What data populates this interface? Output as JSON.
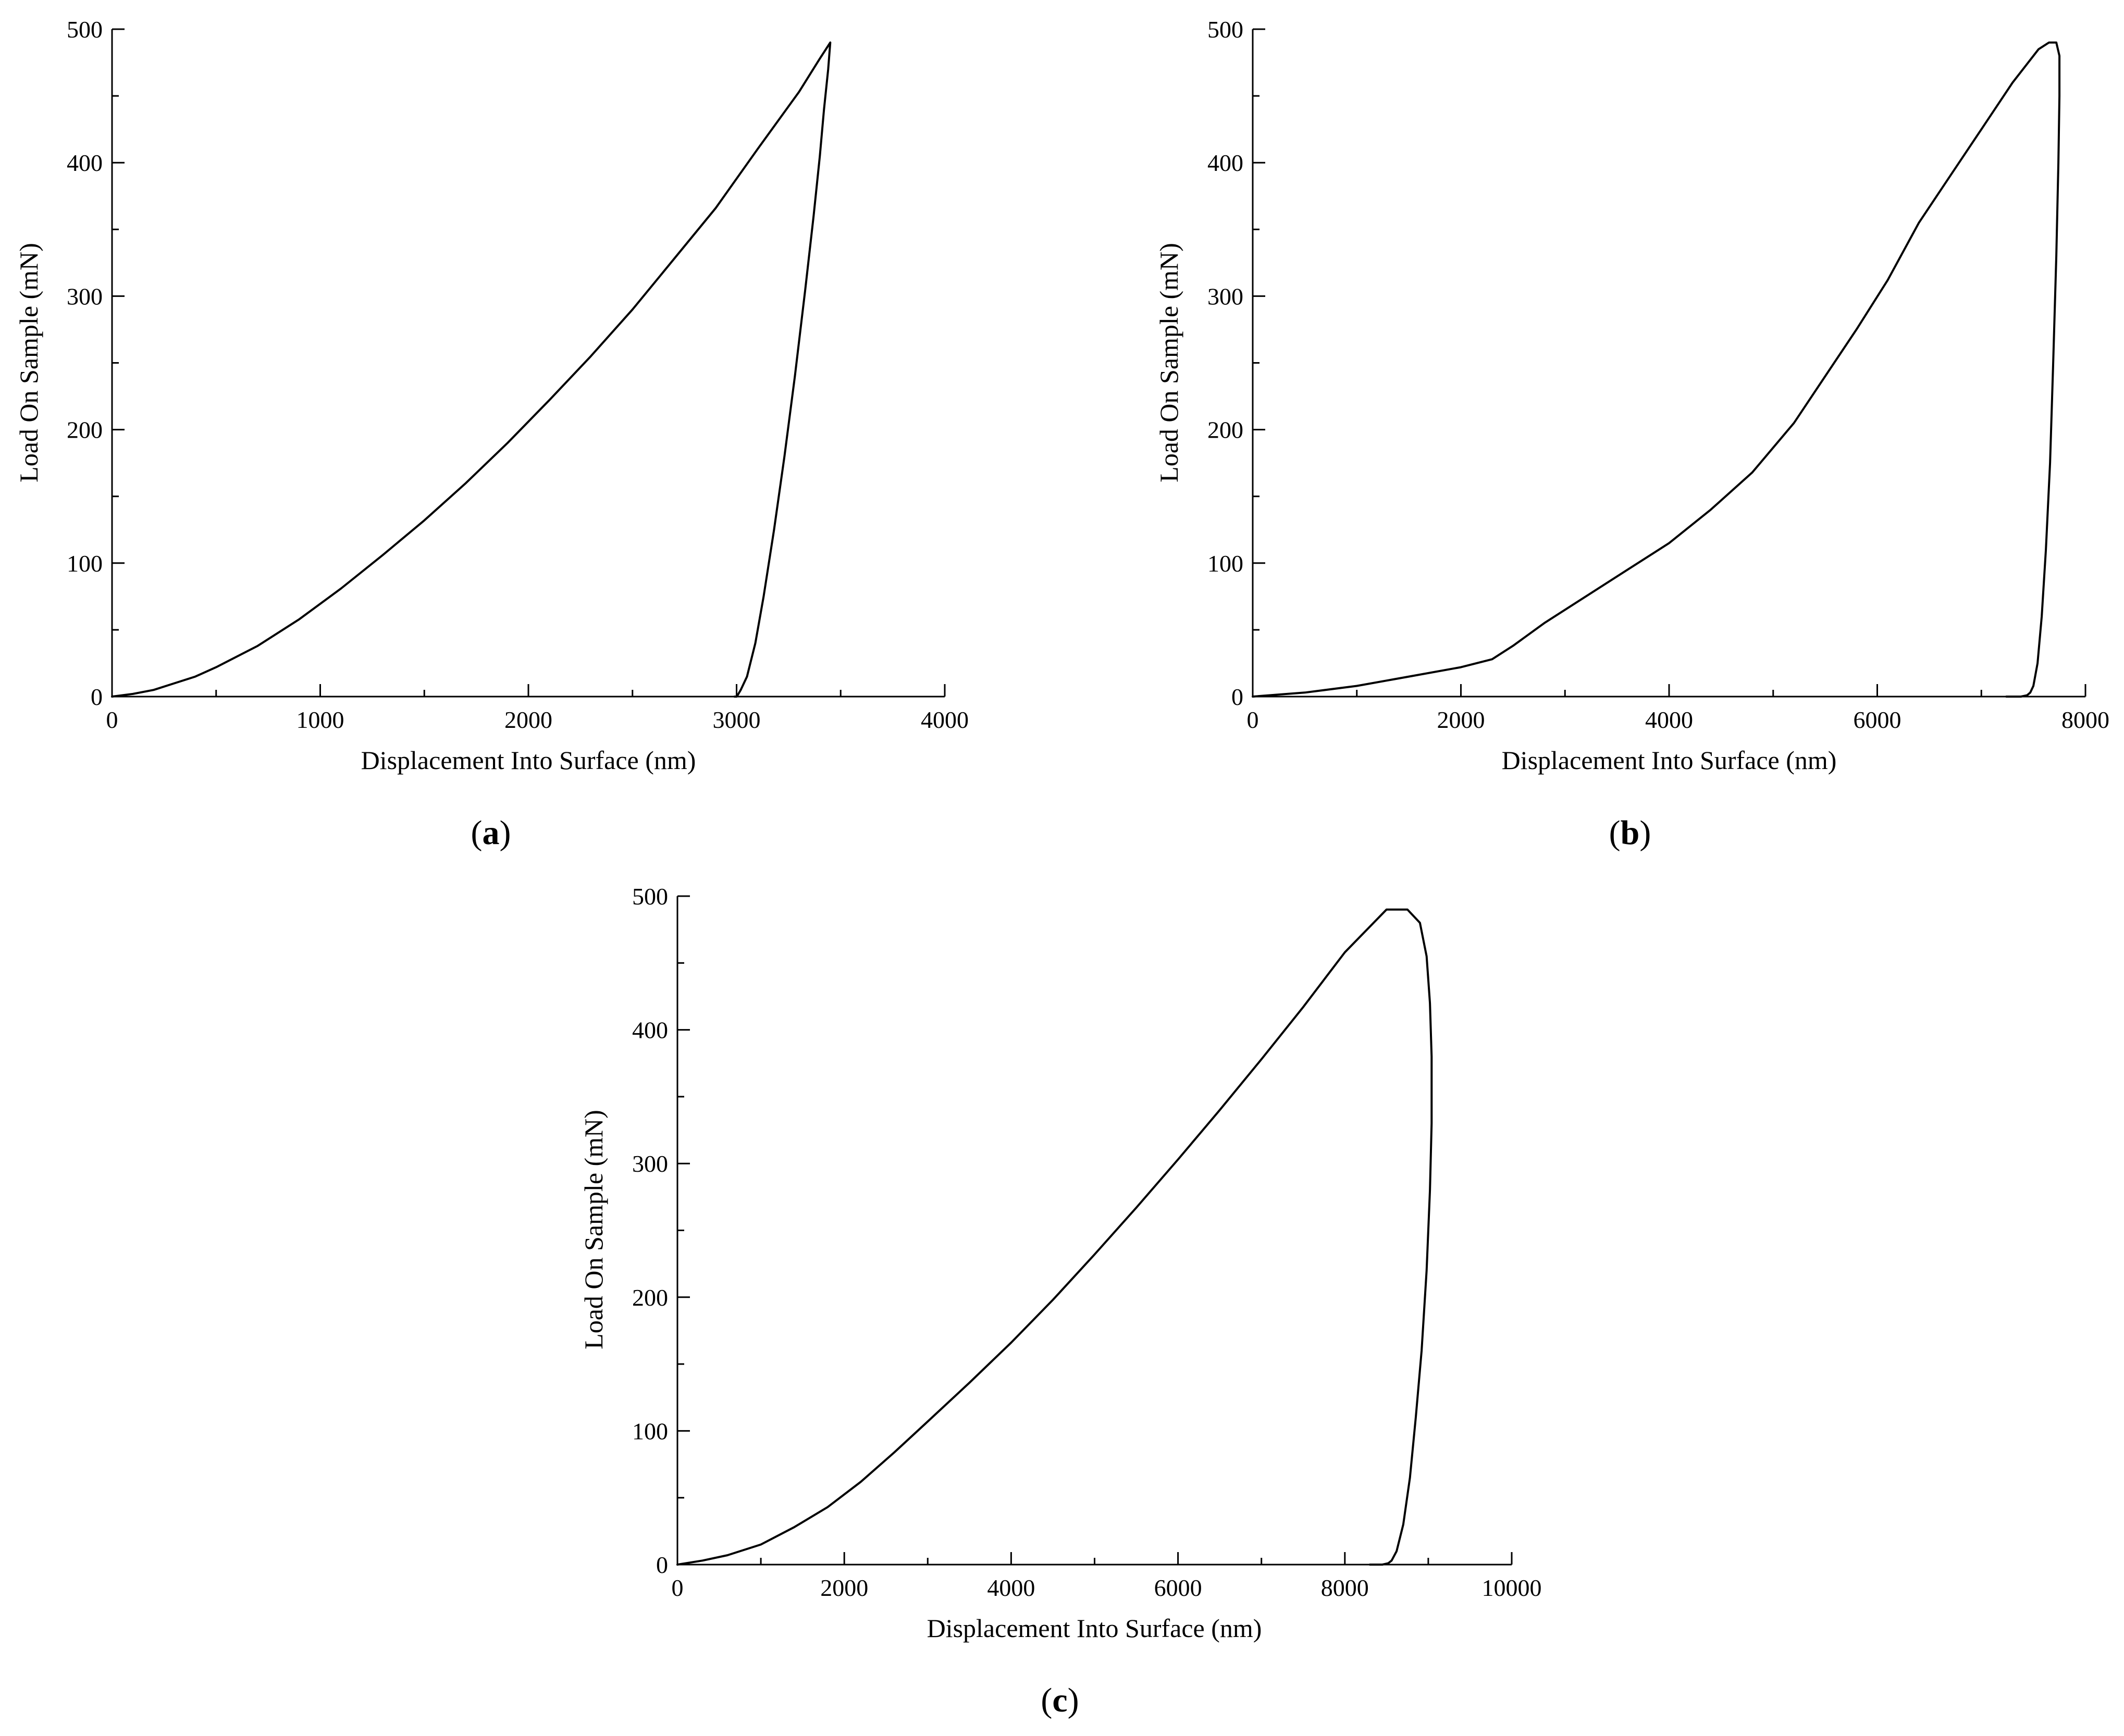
{
  "colors": {
    "background": "#ffffff",
    "line": "#000000"
  },
  "chart_data": [
    {
      "type": "line",
      "panel_label": "(a)",
      "panel_letter": "a",
      "xlabel": "Displacement Into Surface (nm)",
      "ylabel": "Load On Sample (mN)",
      "xlim": [
        0,
        4000
      ],
      "ylim": [
        0,
        500
      ],
      "xticks": [
        0,
        1000,
        2000,
        3000,
        4000
      ],
      "yticks": [
        0,
        100,
        200,
        300,
        400,
        500
      ],
      "x_minor_step": 500,
      "y_minor_step": 50,
      "grid": false,
      "series": [
        {
          "x": [
            0,
            100,
            200,
            300,
            400,
            500,
            700,
            900,
            1100,
            1300,
            1500,
            1700,
            1900,
            2100,
            2300,
            2500,
            2700,
            2900,
            3100,
            3300,
            3400,
            3450,
            3450,
            3440,
            3420,
            3400,
            3370,
            3330,
            3280,
            3230,
            3180,
            3130,
            3090,
            3050,
            3020,
            3005,
            3000,
            2990
          ],
          "y": [
            0,
            2,
            5,
            10,
            15,
            22,
            38,
            58,
            81,
            106,
            132,
            160,
            190,
            222,
            255,
            290,
            328,
            366,
            410,
            453,
            478,
            490,
            490,
            470,
            440,
            405,
            360,
            305,
            240,
            180,
            125,
            75,
            40,
            15,
            5,
            1,
            0,
            0
          ]
        }
      ]
    },
    {
      "type": "line",
      "panel_label": "(b)",
      "panel_letter": "b",
      "xlabel": "Displacement Into Surface (nm)",
      "ylabel": "Load On Sample (mN)",
      "xlim": [
        0,
        8000
      ],
      "ylim": [
        0,
        500
      ],
      "xticks": [
        0,
        2000,
        4000,
        6000,
        8000
      ],
      "yticks": [
        0,
        100,
        200,
        300,
        400,
        500
      ],
      "x_minor_step": 1000,
      "y_minor_step": 50,
      "grid": false,
      "series": [
        {
          "x": [
            0,
            500,
            1000,
            1500,
            2000,
            2300,
            2500,
            2800,
            3200,
            3600,
            4000,
            4400,
            4800,
            5200,
            5500,
            5800,
            6100,
            6400,
            6700,
            7000,
            7300,
            7550,
            7650,
            7720,
            7750,
            7750,
            7740,
            7720,
            7690,
            7660,
            7620,
            7580,
            7540,
            7500,
            7470,
            7440,
            7380,
            7300,
            7240
          ],
          "y": [
            0,
            3,
            8,
            15,
            22,
            28,
            38,
            55,
            75,
            95,
            115,
            140,
            168,
            205,
            240,
            275,
            312,
            355,
            390,
            425,
            460,
            485,
            490,
            490,
            480,
            450,
            400,
            330,
            250,
            175,
            110,
            60,
            25,
            8,
            3,
            1,
            0,
            0,
            0
          ]
        }
      ]
    },
    {
      "type": "line",
      "panel_label": "(c)",
      "panel_letter": "c",
      "xlabel": "Displacement Into Surface (nm)",
      "ylabel": "Load On Sample (mN)",
      "xlim": [
        0,
        10000
      ],
      "ylim": [
        0,
        500
      ],
      "xticks": [
        0,
        2000,
        4000,
        6000,
        8000,
        10000
      ],
      "yticks": [
        0,
        100,
        200,
        300,
        400,
        500
      ],
      "x_minor_step": 1000,
      "y_minor_step": 50,
      "grid": false,
      "series": [
        {
          "x": [
            0,
            300,
            600,
            1000,
            1400,
            1800,
            2200,
            2600,
            3000,
            3500,
            4000,
            4500,
            5000,
            5500,
            6000,
            6500,
            7000,
            7500,
            8000,
            8500,
            8750,
            8900,
            8980,
            9020,
            9040,
            9040,
            9020,
            8980,
            8920,
            8850,
            8780,
            8700,
            8620,
            8560,
            8520,
            8450,
            8300
          ],
          "y": [
            0,
            3,
            7,
            15,
            28,
            43,
            62,
            84,
            107,
            136,
            166,
            198,
            232,
            267,
            303,
            340,
            378,
            417,
            458,
            490,
            490,
            480,
            455,
            420,
            380,
            330,
            280,
            220,
            160,
            110,
            65,
            30,
            10,
            3,
            1,
            0,
            0
          ]
        }
      ]
    }
  ]
}
